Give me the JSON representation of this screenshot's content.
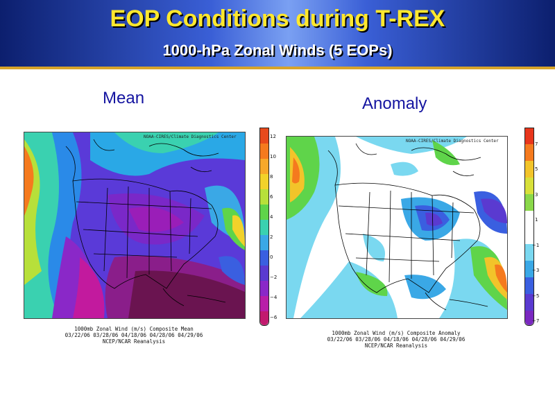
{
  "slide": {
    "title": "EOP Conditions during T-REX",
    "subtitle": "1000-hPa Zonal Winds (5 EOPs)"
  },
  "panels": [
    {
      "label": "Mean",
      "credit": "NOAA-CIRES/Climate Diagnostics Center",
      "caption_line1": "1000mb Zonal Wind (m/s) Composite Mean",
      "caption_line2": "03/22/06 03/28/06 04/18/06 04/28/06 04/29/06",
      "caption_line3": "NCEP/NCAR Reanalysis",
      "colorbar_labels": [
        "12",
        "10",
        "8",
        "6",
        "4",
        "2",
        "0",
        "−2",
        "−4",
        "−6"
      ],
      "colorbar_colors": [
        "#e84a1c",
        "#f57a1e",
        "#f7a82a",
        "#f2d22a",
        "#b7e03a",
        "#5fd44a",
        "#3ad1b0",
        "#3aa8e6",
        "#3a5fe0",
        "#5a3ad0",
        "#8a28c8",
        "#b81ea8",
        "#c21a6e"
      ]
    },
    {
      "label": "Anomaly",
      "credit": "NOAA-CIRES/Climate Diagnostics Center",
      "caption_line1": "1000mb Zonal Wind (m/s) Composite Anomaly",
      "caption_line2": "03/22/06 03/28/06 04/18/06 04/28/06 04/29/06",
      "caption_line3": "NCEP/NCAR Reanalysis",
      "colorbar_labels": [
        "7",
        "5",
        "3",
        "1",
        "−1",
        "−3",
        "−5",
        "−7"
      ],
      "colorbar_colors": [
        "#e8361c",
        "#f57a1e",
        "#f2c42a",
        "#d8e03a",
        "#8ad84a",
        "#ffffff",
        "#ffffff",
        "#7ad8f0",
        "#3aa8e6",
        "#3a5fe0",
        "#5a3ad0",
        "#7a28c0"
      ]
    }
  ]
}
